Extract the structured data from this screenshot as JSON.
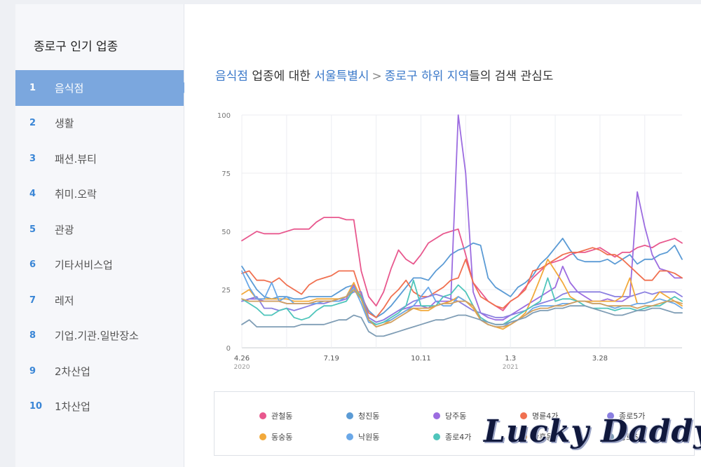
{
  "sidebar": {
    "title": "종로구 인기 업종",
    "items": [
      {
        "num": "1",
        "label": "음식점"
      },
      {
        "num": "2",
        "label": "생활"
      },
      {
        "num": "3",
        "label": "패션.뷰티"
      },
      {
        "num": "4",
        "label": "취미.오락"
      },
      {
        "num": "5",
        "label": "관광"
      },
      {
        "num": "6",
        "label": "기타서비스업"
      },
      {
        "num": "7",
        "label": "레저"
      },
      {
        "num": "8",
        "label": "기업.기관.일반장소"
      },
      {
        "num": "9",
        "label": "2차산업"
      },
      {
        "num": "10",
        "label": "1차산업"
      }
    ],
    "active_index": 0
  },
  "heading": {
    "category": "음식점",
    "text1": " 업종에 대한 ",
    "city": "서울특별시",
    "separator": ">",
    "district": "종로구 하위 지역",
    "text2": "들의 검색 관심도"
  },
  "watermark": "Lucky Daddy",
  "chart_data": {
    "type": "line",
    "ylim": [
      0,
      100
    ],
    "yticks": [
      "0",
      "25",
      "50",
      "75",
      "100"
    ],
    "xticks": [
      {
        "label": "4.26",
        "sub": "2020",
        "index": 0
      },
      {
        "label": "7.19",
        "sub": "",
        "index": 12
      },
      {
        "label": "10.11",
        "sub": "",
        "index": 24
      },
      {
        "label": "1.3",
        "sub": "2021",
        "index": 36
      },
      {
        "label": "3.28",
        "sub": "",
        "index": 48
      }
    ],
    "series": [
      {
        "name": "관철동",
        "color": "#e8588e",
        "values": [
          46,
          48,
          50,
          49,
          49,
          49,
          50,
          51,
          51,
          51,
          54,
          56,
          56,
          56,
          55,
          55,
          33,
          22,
          18,
          24,
          34,
          42,
          38,
          36,
          40,
          45,
          47,
          49,
          50,
          51,
          40,
          28,
          24,
          20,
          18,
          16,
          20,
          22,
          26,
          30,
          33,
          36,
          37,
          38,
          40,
          41,
          41,
          42,
          43,
          41,
          39,
          41,
          41,
          43,
          44,
          43,
          45,
          46,
          47,
          45
        ]
      },
      {
        "name": "청진동",
        "color": "#5b9bd5",
        "values": [
          35,
          30,
          25,
          22,
          21,
          22,
          22,
          21,
          21,
          22,
          22,
          22,
          22,
          24,
          26,
          27,
          22,
          16,
          13,
          15,
          18,
          22,
          26,
          30,
          30,
          29,
          33,
          36,
          40,
          42,
          43,
          45,
          44,
          30,
          26,
          24,
          22,
          26,
          28,
          31,
          36,
          39,
          43,
          47,
          42,
          38,
          37,
          37,
          37,
          38,
          36,
          38,
          40,
          36,
          38,
          38,
          40,
          41,
          44,
          38
        ]
      },
      {
        "name": "당주동",
        "color": "#9c6ce0",
        "values": [
          20,
          21,
          21,
          20,
          20,
          20,
          19,
          19,
          19,
          19,
          20,
          20,
          20,
          20,
          21,
          27,
          21,
          13,
          11,
          12,
          14,
          16,
          17,
          18,
          18,
          17,
          20,
          20,
          20,
          100,
          75,
          24,
          15,
          13,
          12,
          12,
          14,
          16,
          18,
          20,
          22,
          24,
          26,
          35,
          28,
          24,
          22,
          20,
          20,
          21,
          20,
          20,
          22,
          67,
          52,
          40,
          34,
          33,
          30,
          30
        ]
      },
      {
        "name": "명륜4가",
        "color": "#f07050",
        "values": [
          32,
          33,
          29,
          29,
          28,
          30,
          27,
          25,
          23,
          27,
          29,
          30,
          31,
          33,
          33,
          33,
          23,
          15,
          13,
          17,
          22,
          25,
          29,
          24,
          22,
          22,
          24,
          26,
          29,
          30,
          38,
          28,
          22,
          20,
          18,
          17,
          20,
          22,
          25,
          33,
          34,
          36,
          38,
          40,
          41,
          41,
          42,
          43,
          42,
          40,
          40,
          38,
          35,
          32,
          29,
          29,
          33,
          33,
          32,
          30
        ]
      },
      {
        "name": "종로5가",
        "color": "#8a7fe0",
        "values": [
          20,
          21,
          22,
          17,
          17,
          16,
          17,
          16,
          17,
          18,
          19,
          19,
          20,
          21,
          22,
          24,
          24,
          13,
          11,
          12,
          14,
          16,
          18,
          20,
          21,
          22,
          23,
          22,
          21,
          20,
          18,
          16,
          15,
          14,
          13,
          13,
          14,
          15,
          16,
          18,
          19,
          20,
          21,
          23,
          24,
          24,
          24,
          24,
          24,
          23,
          22,
          22,
          22,
          23,
          24,
          23,
          24,
          24,
          24,
          22
        ]
      },
      {
        "name": "동숭동",
        "color": "#f2a93b",
        "values": [
          23,
          25,
          21,
          21,
          21,
          21,
          21,
          20,
          20,
          20,
          21,
          21,
          21,
          21,
          22,
          28,
          21,
          12,
          9,
          10,
          12,
          14,
          16,
          17,
          16,
          16,
          18,
          19,
          20,
          22,
          20,
          17,
          12,
          10,
          9,
          8,
          10,
          12,
          15,
          22,
          30,
          38,
          33,
          28,
          22,
          20,
          20,
          20,
          20,
          20,
          20,
          22,
          30,
          19,
          19,
          20,
          24,
          22,
          20,
          18
        ]
      },
      {
        "name": "낙원동",
        "color": "#6aa8e8",
        "values": [
          33,
          26,
          21,
          21,
          28,
          20,
          22,
          19,
          19,
          19,
          19,
          20,
          20,
          20,
          22,
          26,
          19,
          11,
          10,
          11,
          12,
          14,
          16,
          18,
          22,
          26,
          20,
          18,
          18,
          22,
          20,
          18,
          12,
          10,
          9,
          9,
          11,
          12,
          14,
          17,
          18,
          18,
          18,
          19,
          19,
          20,
          20,
          19,
          19,
          18,
          17,
          18,
          18,
          19,
          19,
          20,
          21,
          20,
          19,
          17
        ]
      },
      {
        "name": "종로4가",
        "color": "#4fc5bb",
        "values": [
          21,
          19,
          17,
          14,
          14,
          16,
          17,
          13,
          12,
          13,
          16,
          18,
          18,
          19,
          20,
          25,
          22,
          12,
          10,
          11,
          13,
          15,
          18,
          29,
          18,
          18,
          18,
          22,
          23,
          27,
          24,
          18,
          13,
          11,
          10,
          10,
          12,
          14,
          16,
          18,
          20,
          30,
          20,
          21,
          21,
          20,
          18,
          17,
          17,
          17,
          16,
          17,
          17,
          16,
          17,
          18,
          18,
          20,
          22,
          20
        ]
      },
      {
        "name": "관훈동",
        "color": "#d1a060",
        "values": [
          21,
          20,
          20,
          20,
          20,
          20,
          19,
          19,
          19,
          19,
          20,
          20,
          20,
          21,
          22,
          25,
          21,
          12,
          9,
          10,
          11,
          13,
          15,
          17,
          17,
          17,
          18,
          19,
          19,
          20,
          20,
          18,
          12,
          10,
          9,
          9,
          10,
          12,
          14,
          16,
          17,
          17,
          18,
          18,
          19,
          20,
          20,
          19,
          19,
          18,
          18,
          18,
          18,
          17,
          18,
          18,
          19,
          20,
          20,
          19
        ]
      },
      {
        "name": "종로6가",
        "color": "#7f9db5",
        "values": [
          10,
          12,
          9,
          9,
          9,
          9,
          9,
          9,
          10,
          10,
          10,
          10,
          11,
          12,
          12,
          14,
          13,
          7,
          5,
          5,
          6,
          7,
          8,
          9,
          10,
          11,
          12,
          12,
          13,
          14,
          14,
          13,
          12,
          11,
          10,
          10,
          11,
          12,
          13,
          15,
          16,
          16,
          17,
          17,
          18,
          18,
          18,
          17,
          16,
          15,
          14,
          14,
          15,
          16,
          16,
          17,
          17,
          16,
          15,
          15
        ]
      }
    ]
  }
}
